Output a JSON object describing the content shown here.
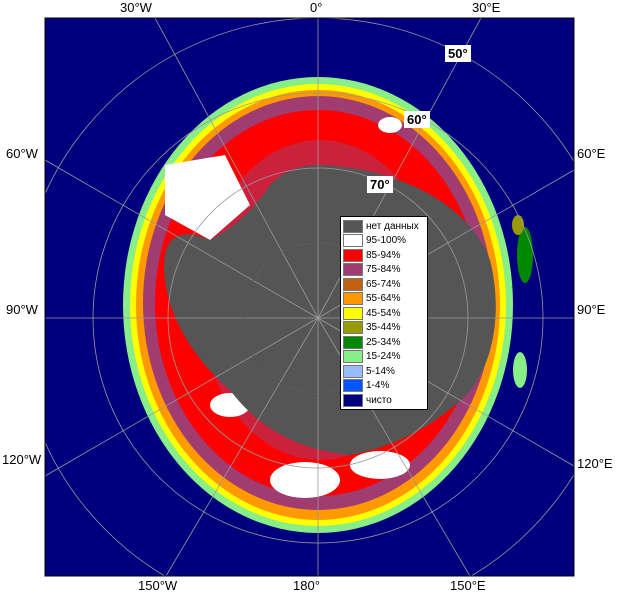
{
  "map": {
    "edge_labels": {
      "top": [
        "30°W",
        "0°",
        "30°E"
      ],
      "left": [
        "60°W",
        "90°W",
        "120°W"
      ],
      "right": [
        "60°E",
        "90°E",
        "120°E"
      ],
      "bottom": [
        "150°W",
        "180°",
        "150°E"
      ]
    },
    "latitude_labels": [
      "50°",
      "60°",
      "70°"
    ],
    "colors": {
      "ocean": "#00007e",
      "no_data": "#555555",
      "land_frame": "#ffffff"
    }
  },
  "legend": {
    "items": [
      {
        "label": "нет данных",
        "color": "#555555"
      },
      {
        "label": "95-100%",
        "color": "#ffffff"
      },
      {
        "label": "85-94%",
        "color": "#ff0000"
      },
      {
        "label": "75-84%",
        "color": "#a03c70"
      },
      {
        "label": "65-74%",
        "color": "#c06010"
      },
      {
        "label": "55-64%",
        "color": "#ff9900"
      },
      {
        "label": "45-54%",
        "color": "#ffff00"
      },
      {
        "label": "35-44%",
        "color": "#999900"
      },
      {
        "label": "25-34%",
        "color": "#008800"
      },
      {
        "label": "15-24%",
        "color": "#88ee88"
      },
      {
        "label": "5-14%",
        "color": "#99bbff"
      },
      {
        "label": "1-4%",
        "color": "#0055ff"
      },
      {
        "label": "чисто",
        "color": "#00007e"
      }
    ]
  }
}
